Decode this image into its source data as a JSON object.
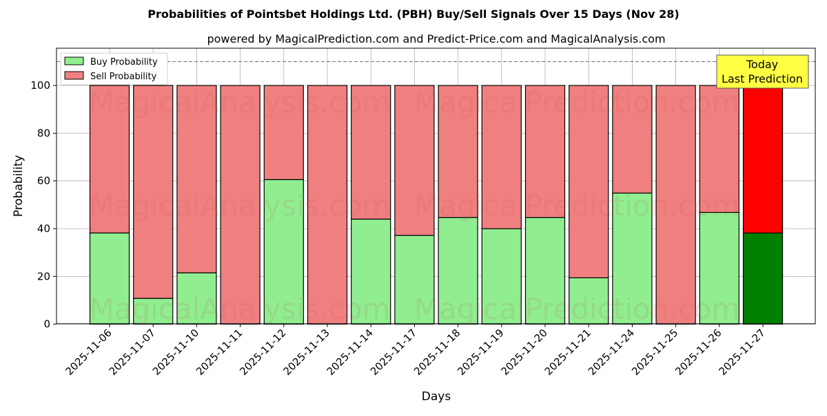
{
  "chart_data": {
    "type": "bar",
    "stacked": true,
    "title": "Probabilities of Pointsbet Holdings Ltd. (PBH) Buy/Sell Signals Over 15 Days (Nov 28)",
    "subtitle": "powered by MagicalPrediction.com and Predict-Price.com and MagicalAnalysis.com",
    "xlabel": "Days",
    "ylabel": "Probability",
    "ylim": [
      0,
      115
    ],
    "yticks": [
      0,
      20,
      40,
      60,
      80,
      100
    ],
    "grid": true,
    "legend_position": "top-left",
    "reference_line": 110,
    "categories": [
      "2025-11-06",
      "2025-11-07",
      "2025-11-10",
      "2025-11-11",
      "2025-11-12",
      "2025-11-13",
      "2025-11-14",
      "2025-11-17",
      "2025-11-18",
      "2025-11-19",
      "2025-11-20",
      "2025-11-21",
      "2025-11-24",
      "2025-11-25",
      "2025-11-26",
      "2025-11-27"
    ],
    "series": [
      {
        "name": "Buy Probability",
        "color": "#90ee90",
        "values": [
          38.2,
          10.8,
          21.5,
          0,
          60.6,
          0,
          44.0,
          37.2,
          44.7,
          40.0,
          44.7,
          19.4,
          54.9,
          0,
          46.8,
          38.2
        ]
      },
      {
        "name": "Sell Probability",
        "color": "#f08080",
        "values": [
          61.8,
          89.2,
          78.5,
          100,
          39.4,
          100,
          56.0,
          62.8,
          55.3,
          60.0,
          55.3,
          80.6,
          45.1,
          100,
          53.2,
          61.8
        ]
      }
    ],
    "highlight": {
      "index": 15,
      "buy_color": "#008000",
      "sell_color": "#ff0000"
    },
    "annotation": {
      "line1": "Today",
      "line2": "Last Prediction",
      "color": "#ffff44"
    },
    "watermarks": [
      "MagicalAnalysis.com",
      "MagicalPrediction.com"
    ]
  }
}
